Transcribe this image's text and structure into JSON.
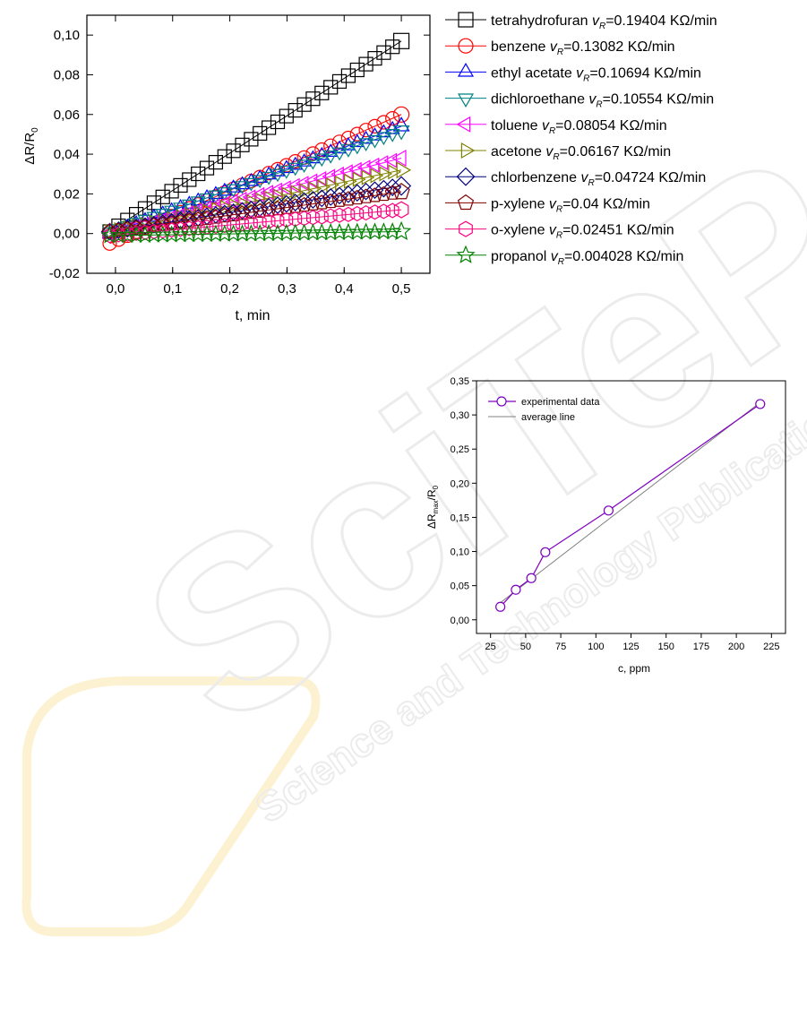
{
  "watermark": {
    "logo_text": "SciTePress",
    "tagline": "Science and Technology Publications",
    "colors": {
      "outline": "#dcdcdc",
      "accent": "#f2c94c"
    }
  },
  "chart_data": [
    {
      "type": "scatter",
      "xlabel": "t, min",
      "ylabel_main": "ΔR/R",
      "ylabel_sub": "0",
      "xlim": [
        -0.05,
        0.55
      ],
      "ylim": [
        -0.02,
        0.11
      ],
      "xticks": [
        0.0,
        0.1,
        0.2,
        0.3,
        0.4,
        0.5
      ],
      "xtick_labels": [
        "0,0",
        "0,1",
        "0,2",
        "0,3",
        "0,4",
        "0,5"
      ],
      "yticks": [
        -0.02,
        0.0,
        0.02,
        0.04,
        0.06,
        0.08,
        0.1
      ],
      "ytick_labels": [
        "-0,02",
        "0,00",
        "0,02",
        "0,04",
        "0,06",
        "0,08",
        "0,10"
      ],
      "x_range": [
        -0.01,
        0.5
      ],
      "legend_position": "right",
      "series": [
        {
          "name": "tetrahydrofuran",
          "rate_label": "=0.19404 KΩ/min",
          "marker": "square",
          "color": "#000000",
          "start": 0.001,
          "end": 0.097
        },
        {
          "name": "benzene",
          "rate_label": "=0.13082 KΩ/min",
          "marker": "circle",
          "color": "#ff0000",
          "start": -0.005,
          "end": 0.06
        },
        {
          "name": "ethyl acetate",
          "rate_label": "=0.10694 KΩ/min",
          "marker": "triangle-up",
          "color": "#0000ff",
          "start": 0.0,
          "end": 0.054
        },
        {
          "name": "dichloroethane",
          "rate_label": "=0.10554 KΩ/min",
          "marker": "triangle-down",
          "color": "#008080",
          "start": 0.001,
          "end": 0.052
        },
        {
          "name": "toluene",
          "rate_label": "=0.08054 KΩ/min",
          "marker": "triangle-left",
          "color": "#ff00ff",
          "start": 0.0,
          "end": 0.038
        },
        {
          "name": "acetone",
          "rate_label": "=0.06167 KΩ/min",
          "marker": "triangle-right",
          "color": "#808000",
          "start": 0.001,
          "end": 0.032
        },
        {
          "name": "chlorbenzene",
          "rate_label": "=0.04724 KΩ/min",
          "marker": "diamond",
          "color": "#000080",
          "start": 0.001,
          "end": 0.024
        },
        {
          "name": "p-xylene",
          "rate_label": "=0.04 KΩ/min",
          "marker": "pentagon",
          "color": "#800000",
          "start": 0.001,
          "end": 0.021
        },
        {
          "name": "o-xylene",
          "rate_label": "=0.02451 KΩ/min",
          "marker": "hexagon",
          "color": "#ff0080",
          "start": -0.001,
          "end": 0.012
        },
        {
          "name": "propanol",
          "rate_label": "=0.004028 KΩ/min",
          "marker": "star",
          "color": "#008000",
          "start": -0.001,
          "end": 0.001
        }
      ]
    },
    {
      "type": "line",
      "xlabel": "c, ppm",
      "ylabel_main": "ΔR",
      "ylabel_sub1": "max",
      "ylabel_mid": "/R",
      "ylabel_sub2": "0",
      "xlim": [
        15,
        235
      ],
      "ylim": [
        -0.02,
        0.35
      ],
      "xticks": [
        25,
        50,
        75,
        100,
        125,
        150,
        175,
        200,
        225
      ],
      "xtick_labels": [
        "25",
        "50",
        "75",
        "100",
        "125",
        "150",
        "175",
        "200",
        "225"
      ],
      "yticks": [
        0.0,
        0.05,
        0.1,
        0.15,
        0.2,
        0.25,
        0.3,
        0.35
      ],
      "ytick_labels": [
        "0,00",
        "0,05",
        "0,10",
        "0,15",
        "0,20",
        "0,25",
        "0,30",
        "0,35"
      ],
      "legend_position": "top-left",
      "series": [
        {
          "name": "experimental data",
          "color": "#7f00bf",
          "marker": "circle",
          "x": [
            32,
            43,
            54,
            64,
            109,
            217
          ],
          "y": [
            0.019,
            0.044,
            0.061,
            0.099,
            0.16,
            0.316
          ]
        },
        {
          "name": "average line",
          "color": "#808080",
          "marker": "none",
          "x": [
            32,
            218
          ],
          "y": [
            0.025,
            0.32
          ]
        }
      ]
    }
  ]
}
